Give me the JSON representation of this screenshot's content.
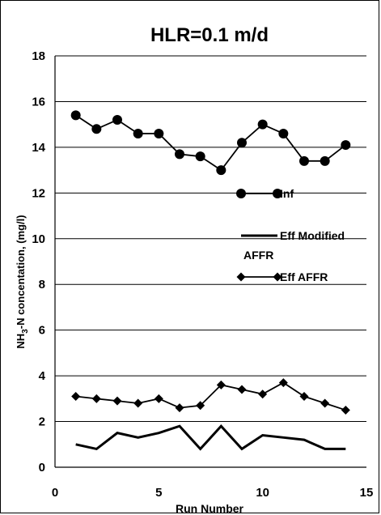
{
  "chart_data": {
    "type": "line",
    "title": "HLR=0.1 m/d",
    "xlabel": "Run Number",
    "ylabel": "NH3-N concentation, (mg/l)",
    "xlim": [
      0,
      15
    ],
    "ylim": [
      0,
      18
    ],
    "xticks": [
      0,
      5,
      10,
      15
    ],
    "yticks": [
      0,
      2,
      4,
      6,
      8,
      10,
      12,
      14,
      16,
      18
    ],
    "grid": true,
    "legend_position": "right",
    "series": [
      {
        "name": "Inf",
        "marker": "circle",
        "x": [
          1,
          2,
          3,
          4,
          5,
          6,
          7,
          8,
          9,
          10,
          11,
          12,
          13,
          14
        ],
        "values": [
          15.4,
          14.8,
          15.2,
          14.6,
          14.6,
          13.7,
          13.6,
          13.0,
          14.2,
          15.0,
          14.6,
          13.4,
          13.4,
          14.1
        ]
      },
      {
        "name": "Eff Modified AFFR",
        "marker": "none",
        "x": [
          1,
          2,
          3,
          4,
          5,
          6,
          7,
          8,
          9,
          10,
          11,
          12,
          13,
          14
        ],
        "values": [
          1.0,
          0.8,
          1.5,
          1.3,
          1.5,
          1.8,
          0.8,
          1.8,
          0.8,
          1.4,
          1.3,
          1.2,
          0.8,
          0.8
        ]
      },
      {
        "name": "Eff AFFR",
        "marker": "diamond",
        "x": [
          1,
          2,
          3,
          4,
          5,
          6,
          7,
          8,
          9,
          10,
          11,
          12,
          13,
          14
        ],
        "values": [
          3.1,
          3.0,
          2.9,
          2.8,
          3.0,
          2.6,
          2.7,
          3.6,
          3.4,
          3.2,
          3.7,
          3.1,
          2.8,
          2.5
        ]
      }
    ]
  }
}
